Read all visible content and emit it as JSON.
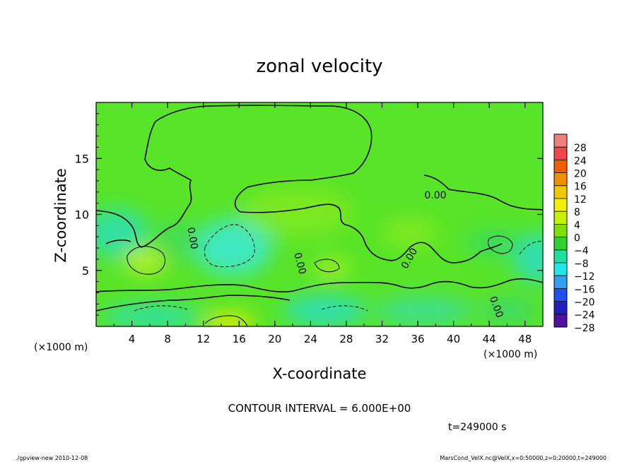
{
  "chart_data": {
    "type": "heatmap",
    "title": "zonal velocity",
    "xlabel": "X-coordinate",
    "ylabel": "Z-coordinate",
    "x_unit_left": "(×1000 m)",
    "x_unit_right": "(×1000 m)",
    "xlim": [
      0,
      50
    ],
    "ylim": [
      0,
      20
    ],
    "x_ticks": [
      "4",
      "8",
      "12",
      "16",
      "20",
      "24",
      "28",
      "32",
      "36",
      "40",
      "44",
      "48"
    ],
    "y_ticks": [
      "5",
      "10",
      "15"
    ],
    "colorbar": {
      "levels": [
        "28",
        "24",
        "20",
        "16",
        "12",
        "8",
        "4",
        "0",
        "−4",
        "−8",
        "−12",
        "−16",
        "−20",
        "−24",
        "−28"
      ],
      "colors": [
        "#f08080",
        "#f04848",
        "#f06000",
        "#f09000",
        "#f0c800",
        "#f0f000",
        "#c8f000",
        "#80e000",
        "#30d030",
        "#20e0a0",
        "#20e8e8",
        "#30a0f0",
        "#2050f0",
        "#2020c0",
        "#5010a0"
      ]
    },
    "contour_labels": [
      "0.00",
      "0.00",
      "0.00",
      "0.00",
      "0.00"
    ],
    "contour_interval": "CONTOUR INTERVAL = 6.000E+00",
    "time": "t=249000 s"
  },
  "footer": {
    "left": "./gpview-new  2010-12-08",
    "right": "MarsCond_VelX.nc@VelX,x=0:50000,z=0:20000,t=249000"
  }
}
